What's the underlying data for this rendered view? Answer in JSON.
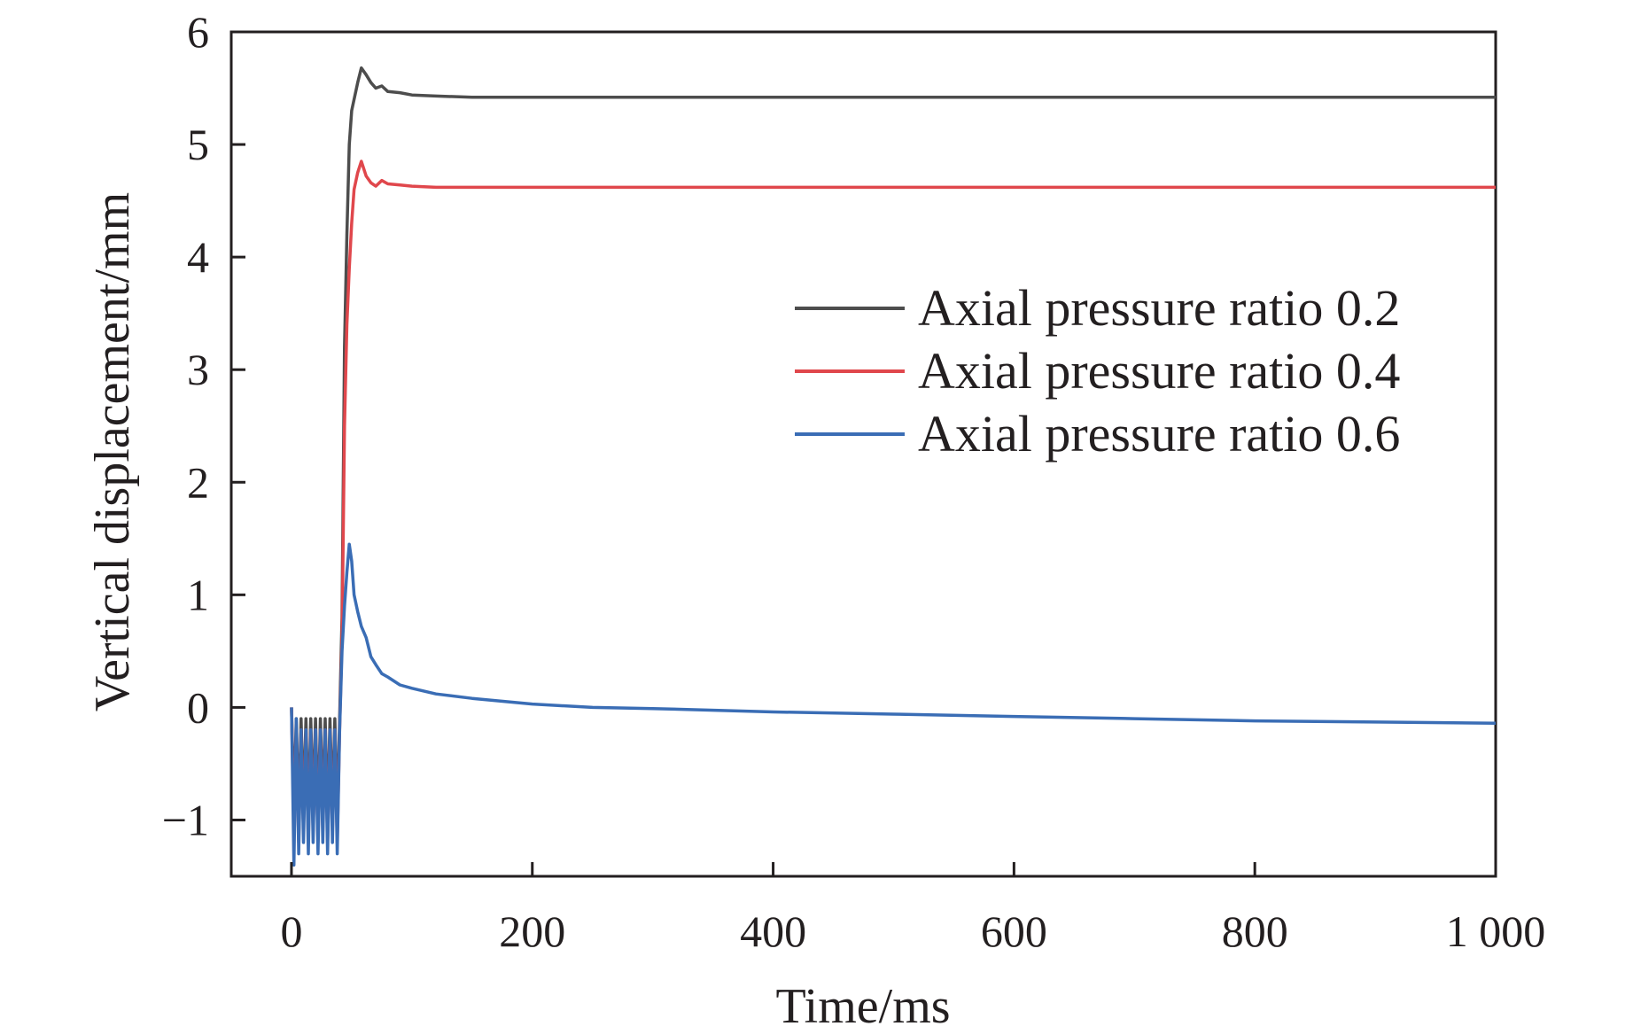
{
  "chart_data": {
    "type": "line",
    "title": "",
    "xlabel": "Time/ms",
    "ylabel": "Vertical displacement/mm",
    "xlim": [
      -50,
      1000
    ],
    "ylim": [
      -1.5,
      6
    ],
    "x_ticks": [
      0,
      200,
      400,
      600,
      800,
      1000
    ],
    "x_tick_labels": [
      "0",
      "200",
      "400",
      "600",
      "800",
      "1 000"
    ],
    "y_ticks": [
      -1,
      0,
      1,
      2,
      3,
      4,
      5,
      6
    ],
    "y_tick_labels": [
      "−1",
      "0",
      "1",
      "2",
      "3",
      "4",
      "5",
      "6"
    ],
    "legend_position": "center-right",
    "series": [
      {
        "name": "Axial pressure ratio 0.2",
        "color": "#4d4d4d",
        "x": [
          0,
          2,
          4,
          6,
          8,
          10,
          12,
          14,
          16,
          18,
          20,
          22,
          24,
          26,
          28,
          30,
          32,
          34,
          36,
          38,
          40,
          42,
          44,
          46,
          48,
          50,
          52,
          55,
          58,
          62,
          66,
          70,
          75,
          80,
          90,
          100,
          120,
          150,
          200,
          300,
          500,
          700,
          1000
        ],
        "values": [
          0,
          -0.9,
          -0.1,
          -1.0,
          -0.1,
          -0.9,
          -0.1,
          -1.0,
          -0.1,
          -0.9,
          -0.1,
          -1.0,
          -0.1,
          -0.9,
          -0.1,
          -1.0,
          -0.1,
          -0.9,
          -0.1,
          -1.0,
          -0.1,
          0.8,
          3.2,
          4.2,
          5.0,
          5.3,
          5.4,
          5.55,
          5.68,
          5.62,
          5.55,
          5.5,
          5.52,
          5.47,
          5.46,
          5.44,
          5.43,
          5.42,
          5.42,
          5.42,
          5.42,
          5.42,
          5.42
        ]
      },
      {
        "name": "Axial pressure ratio 0.4",
        "color": "#e0474c",
        "x": [
          0,
          2,
          4,
          6,
          8,
          10,
          12,
          14,
          16,
          18,
          20,
          22,
          24,
          26,
          28,
          30,
          32,
          34,
          36,
          38,
          40,
          42,
          44,
          46,
          48,
          50,
          52,
          55,
          58,
          62,
          66,
          70,
          75,
          80,
          90,
          100,
          120,
          150,
          200,
          300,
          500,
          700,
          1000
        ],
        "values": [
          0,
          -1.1,
          -0.2,
          -1.2,
          -0.2,
          -1.1,
          -0.2,
          -1.2,
          -0.2,
          -1.1,
          -0.2,
          -1.2,
          -0.2,
          -1.1,
          -0.2,
          -1.2,
          -0.2,
          -1.1,
          -0.2,
          -1.2,
          -0.2,
          0.6,
          2.5,
          3.4,
          3.9,
          4.3,
          4.6,
          4.75,
          4.85,
          4.72,
          4.66,
          4.63,
          4.68,
          4.65,
          4.64,
          4.63,
          4.62,
          4.62,
          4.62,
          4.62,
          4.62,
          4.62,
          4.62
        ]
      },
      {
        "name": "Axial pressure ratio 0.6",
        "color": "#3a6db5",
        "x": [
          0,
          2,
          4,
          6,
          8,
          10,
          12,
          14,
          16,
          18,
          20,
          22,
          24,
          26,
          28,
          30,
          32,
          34,
          36,
          38,
          40,
          42,
          44,
          46,
          48,
          50,
          52,
          55,
          58,
          62,
          66,
          70,
          75,
          80,
          90,
          100,
          120,
          150,
          200,
          250,
          300,
          400,
          500,
          600,
          700,
          800,
          900,
          1000
        ],
        "values": [
          0,
          -1.4,
          -0.1,
          -1.3,
          -0.2,
          -1.2,
          -0.2,
          -1.3,
          -0.2,
          -1.2,
          -0.2,
          -1.3,
          -0.2,
          -1.2,
          -0.2,
          -1.3,
          -0.2,
          -1.2,
          -0.2,
          -1.3,
          -0.2,
          0.5,
          0.9,
          1.2,
          1.45,
          1.3,
          1.0,
          0.85,
          0.72,
          0.62,
          0.45,
          0.38,
          0.3,
          0.27,
          0.2,
          0.17,
          0.12,
          0.08,
          0.03,
          0.0,
          -0.01,
          -0.04,
          -0.06,
          -0.08,
          -0.1,
          -0.12,
          -0.13,
          -0.14
        ]
      }
    ]
  }
}
